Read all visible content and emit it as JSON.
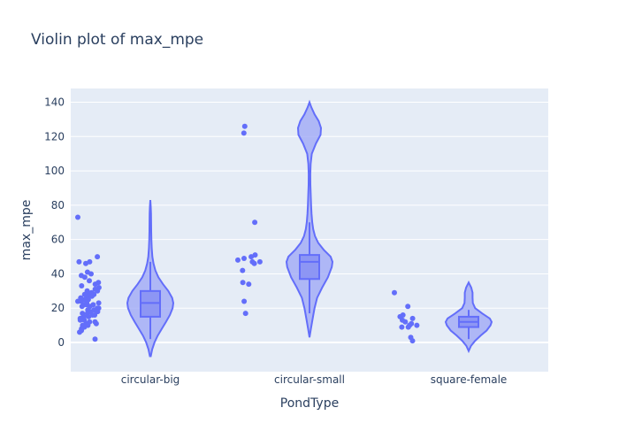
{
  "chart_data": {
    "type": "violin",
    "title": "Violin plot of max_mpe",
    "xlabel": "PondType",
    "ylabel": "max_mpe",
    "categories": [
      "circular-big",
      "circular-small",
      "square-female"
    ],
    "ylim": [
      -17,
      148
    ],
    "yticks": [
      0,
      20,
      40,
      60,
      80,
      100,
      120,
      140
    ],
    "grid": true,
    "legend": false,
    "colors": {
      "plot_bg": "#e5ecf6",
      "grid": "#ffffff",
      "violin_fill": "#9ba5f5",
      "violin_line": "#636efa",
      "box_fill": "#8d96f4",
      "points": "#636efa",
      "text": "#2a3f5f"
    },
    "violins": [
      {
        "category": "circular-big",
        "min": -8,
        "max": 83,
        "box": {
          "q1": 15,
          "median": 23,
          "q3": 30,
          "whisker_low": 2,
          "whisker_high": 47
        },
        "density": [
          [
            -8,
            0.02
          ],
          [
            -4,
            0.08
          ],
          [
            0,
            0.18
          ],
          [
            4,
            0.32
          ],
          [
            8,
            0.5
          ],
          [
            12,
            0.68
          ],
          [
            16,
            0.85
          ],
          [
            20,
            0.97
          ],
          [
            23,
            1.0
          ],
          [
            26,
            0.95
          ],
          [
            30,
            0.78
          ],
          [
            34,
            0.55
          ],
          [
            38,
            0.35
          ],
          [
            42,
            0.22
          ],
          [
            46,
            0.14
          ],
          [
            50,
            0.09
          ],
          [
            55,
            0.06
          ],
          [
            60,
            0.045
          ],
          [
            65,
            0.04
          ],
          [
            70,
            0.035
          ],
          [
            75,
            0.03
          ],
          [
            79,
            0.02
          ],
          [
            83,
            0.0
          ]
        ],
        "points": [
          73,
          50,
          47,
          47,
          46,
          41,
          40,
          39,
          38,
          36,
          35,
          34,
          33,
          32,
          31,
          30,
          30,
          29,
          29,
          28,
          28,
          27,
          27,
          26,
          26,
          25,
          25,
          24,
          24,
          23,
          23,
          22,
          22,
          22,
          21,
          21,
          20,
          20,
          19,
          19,
          18,
          18,
          17,
          17,
          16,
          16,
          15,
          15,
          14,
          14,
          13,
          13,
          12,
          12,
          11,
          11,
          10,
          10,
          9,
          8,
          7,
          6,
          2
        ]
      },
      {
        "category": "circular-small",
        "min": 3,
        "max": 140,
        "box": {
          "q1": 37,
          "median": 47,
          "q3": 51,
          "whisker_low": 17,
          "whisker_high": 70
        },
        "density": [
          [
            3,
            0.0
          ],
          [
            8,
            0.06
          ],
          [
            14,
            0.14
          ],
          [
            20,
            0.22
          ],
          [
            26,
            0.33
          ],
          [
            32,
            0.55
          ],
          [
            38,
            0.8
          ],
          [
            44,
            0.97
          ],
          [
            47,
            1.0
          ],
          [
            50,
            0.92
          ],
          [
            54,
            0.62
          ],
          [
            58,
            0.38
          ],
          [
            62,
            0.24
          ],
          [
            66,
            0.16
          ],
          [
            70,
            0.12
          ],
          [
            75,
            0.09
          ],
          [
            80,
            0.07
          ],
          [
            86,
            0.055
          ],
          [
            92,
            0.04
          ],
          [
            98,
            0.035
          ],
          [
            104,
            0.05
          ],
          [
            110,
            0.1
          ],
          [
            116,
            0.28
          ],
          [
            121,
            0.48
          ],
          [
            125,
            0.5
          ],
          [
            129,
            0.4
          ],
          [
            133,
            0.22
          ],
          [
            137,
            0.08
          ],
          [
            140,
            0.0
          ]
        ],
        "points": [
          126,
          122,
          70,
          51,
          50,
          49,
          48,
          47,
          47,
          46,
          42,
          35,
          34,
          24,
          17
        ]
      },
      {
        "category": "square-female",
        "min": -5,
        "max": 35,
        "box": {
          "q1": 9,
          "median": 12,
          "q3": 15,
          "whisker_low": 2,
          "whisker_high": 19
        },
        "density": [
          [
            -5,
            0.0
          ],
          [
            -2,
            0.1
          ],
          [
            1,
            0.28
          ],
          [
            4,
            0.52
          ],
          [
            7,
            0.78
          ],
          [
            10,
            0.95
          ],
          [
            12,
            1.0
          ],
          [
            14,
            0.92
          ],
          [
            17,
            0.58
          ],
          [
            20,
            0.28
          ],
          [
            23,
            0.18
          ],
          [
            26,
            0.17
          ],
          [
            29,
            0.17
          ],
          [
            32,
            0.11
          ],
          [
            35,
            0.0
          ]
        ],
        "points": [
          29,
          21,
          16,
          15,
          14,
          13,
          12,
          11,
          10,
          10,
          9,
          9,
          3,
          1
        ]
      }
    ]
  }
}
